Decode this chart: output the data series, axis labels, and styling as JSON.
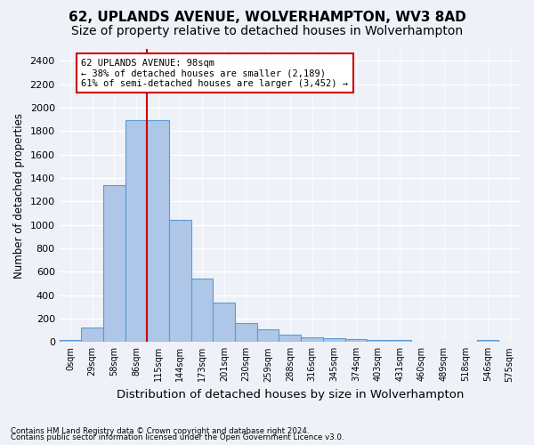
{
  "title": "62, UPLANDS AVENUE, WOLVERHAMPTON, WV3 8AD",
  "subtitle": "Size of property relative to detached houses in Wolverhampton",
  "xlabel": "Distribution of detached houses by size in Wolverhampton",
  "ylabel": "Number of detached properties",
  "bar_values": [
    15,
    125,
    1340,
    1890,
    1890,
    1040,
    540,
    335,
    165,
    110,
    65,
    40,
    30,
    25,
    20,
    15,
    5,
    0,
    0,
    15,
    5
  ],
  "bar_labels": [
    "0sqm",
    "29sqm",
    "58sqm",
    "86sqm",
    "115sqm",
    "144sqm",
    "173sqm",
    "201sqm",
    "230sqm",
    "259sqm",
    "288sqm",
    "316sqm",
    "345sqm",
    "374sqm",
    "403sqm",
    "431sqm",
    "460sqm",
    "489sqm",
    "518sqm",
    "546sqm",
    "575sqm"
  ],
  "bar_color": "#aec6e8",
  "bar_edge_color": "#5b9bd5",
  "red_line_color": "#cc0000",
  "annotation_text": "62 UPLANDS AVENUE: 98sqm\n← 38% of detached houses are smaller (2,189)\n61% of semi-detached houses are larger (3,452) →",
  "annotation_box_color": "#cc0000",
  "ylim": [
    0,
    2500
  ],
  "yticks": [
    0,
    200,
    400,
    600,
    800,
    1000,
    1200,
    1400,
    1600,
    1800,
    2000,
    2200,
    2400
  ],
  "footnote1": "Contains HM Land Registry data © Crown copyright and database right 2024.",
  "footnote2": "Contains public sector information licensed under the Open Government Licence v3.0.",
  "background_color": "#eef2f8",
  "axes_background": "#eef2f8",
  "grid_color": "#ffffff",
  "title_fontsize": 11,
  "subtitle_fontsize": 10,
  "xlabel_fontsize": 9.5,
  "ylabel_fontsize": 8.5,
  "red_line_x": 3.5
}
